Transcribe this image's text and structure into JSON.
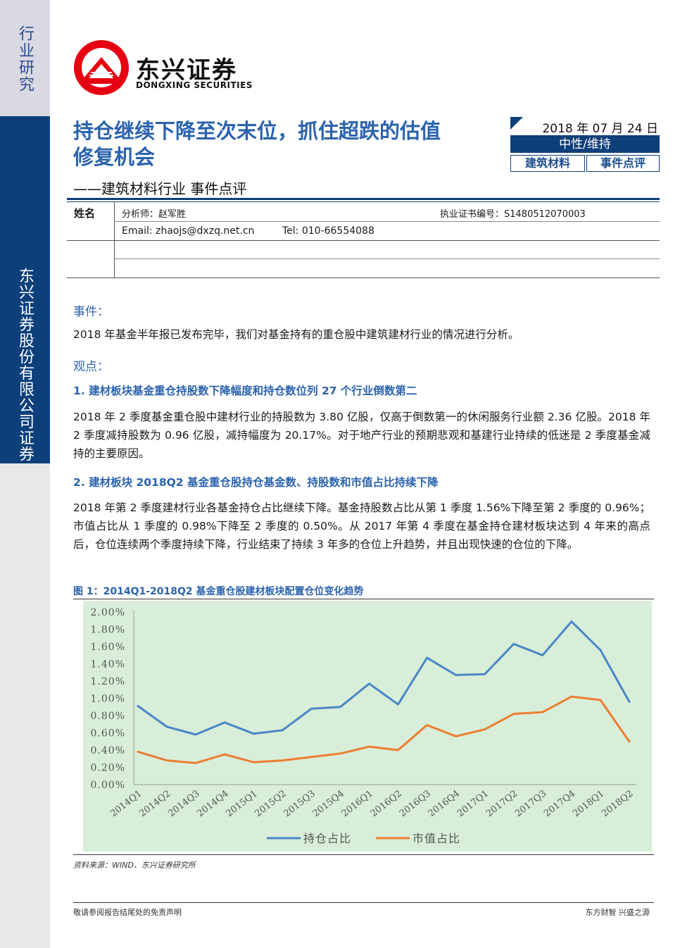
{
  "sidebar": {
    "top_label": "行业研究",
    "company_label": "东兴证券股份有限公司证券研究报告"
  },
  "brand": {
    "name_cn": "东兴证券",
    "name_en": "DONGXING SECURITIES",
    "logo_color": "#e60012"
  },
  "report": {
    "title": "持仓继续下降至次末位，抓住超跌的估值修复机会",
    "subtitle": "——建筑材料行业 事件点评",
    "date": "2018 年 07 月 24 日",
    "rating": "中性/维持",
    "tags": [
      "建筑材料",
      "事件点评"
    ]
  },
  "analyst": {
    "name_header": "姓名",
    "analyst": "分析师：赵军胜",
    "cert": "执业证书编号：S1480512070003",
    "email": "Email: zhaojs@dxzq.net.cn",
    "tel": "Tel: 010-66554088"
  },
  "body": {
    "event_heading": "事件：",
    "event_text": "2018 年基金半年报已发布完毕，我们对基金持有的重仓股中建筑建材行业的情况进行分析。",
    "view_heading": "观点：",
    "point1_title": "1.  建材板块基金重仓持股数下降幅度和持仓数位列 27 个行业倒数第二",
    "point1_text": "2018 年 2 季度基金重仓股中建材行业的持股数为 3.80 亿股，仅高于倒数第一的休闲服务行业额 2.36 亿股。2018 年 2 季度减持股数为 0.96 亿股，减持幅度为 20.17%。对于地产行业的预期悲观和基建行业持续的低迷是 2 季度基金减持的主要原因。",
    "point2_title": "2.  建材板块 2018Q2 基金重仓股持仓基金数、持股数和市值占比持续下降",
    "point2_text": "2018 年第 2 季度建材行业各基金持仓占比继续下降。基金持股数占比从第 1 季度 1.56%下降至第 2 季度的 0.96%；市值占比从 1 季度的 0.98%下降至 2 季度的 0.50%。从 2017 年第 4 季度在基金持仓建材板块达到 4 年来的高点后，仓位连续两个季度持续下降，行业结束了持续 3 年多的仓位上升趋势，并且出现快速的仓位的下降。",
    "figure_title": "图 1：2014Q1-2018Q2 基金重仓股建材板块配置仓位变化趋势",
    "source": "资料来源：WIND、东兴证券研究所"
  },
  "footer": {
    "left": "敬请参阅报告结尾处的免责声明",
    "right": "东方财智  兴盛之源"
  },
  "chart_data": {
    "type": "line",
    "categories": [
      "2014Q1",
      "2014Q2",
      "2014Q3",
      "2014Q4",
      "2015Q1",
      "2015Q2",
      "2015Q3",
      "2015Q4",
      "2016Q1",
      "2016Q2",
      "2016Q3",
      "2016Q4",
      "2017Q1",
      "2017Q2",
      "2017Q3",
      "2017Q4",
      "2018Q1",
      "2018Q2"
    ],
    "series": [
      {
        "name": "持仓占比",
        "color": "#4a86c8",
        "values": [
          0.91,
          0.67,
          0.58,
          0.72,
          0.59,
          0.63,
          0.88,
          0.9,
          1.17,
          0.93,
          1.47,
          1.27,
          1.28,
          1.63,
          1.5,
          1.89,
          1.56,
          0.96
        ]
      },
      {
        "name": "市值占比",
        "color": "#ed7d31",
        "values": [
          0.38,
          0.28,
          0.25,
          0.35,
          0.26,
          0.28,
          0.32,
          0.36,
          0.44,
          0.4,
          0.69,
          0.56,
          0.64,
          0.82,
          0.84,
          1.02,
          0.98,
          0.5
        ]
      }
    ],
    "y_ticks": [
      "0.00%",
      "0.20%",
      "0.40%",
      "0.60%",
      "0.80%",
      "1.00%",
      "1.20%",
      "1.40%",
      "1.60%",
      "1.80%",
      "2.00%"
    ],
    "ylim": [
      0,
      2.0
    ],
    "background": "#d8eed8",
    "legend": "bottom"
  }
}
